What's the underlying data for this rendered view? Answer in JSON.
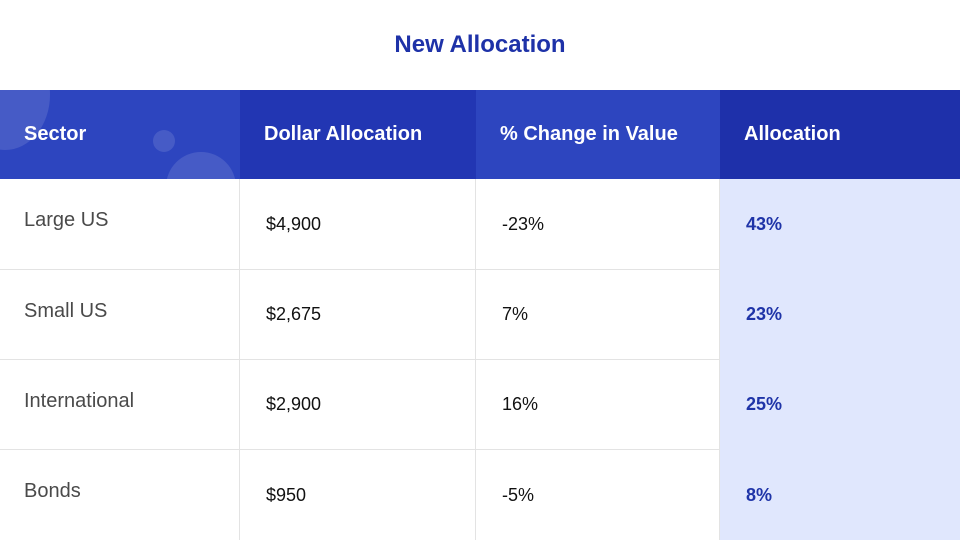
{
  "title": "New Allocation",
  "columns": [
    "Sector",
    "Dollar Allocation",
    "% Change in Value",
    "Allocation"
  ],
  "rows": [
    {
      "sector": "Large US",
      "dollar": "$4,900",
      "change": "-23%",
      "allocation": "43%"
    },
    {
      "sector": "Small US",
      "dollar": "$2,675",
      "change": "7%",
      "allocation": "23%"
    },
    {
      "sector": "International",
      "dollar": "$2,900",
      "change": "16%",
      "allocation": "25%"
    },
    {
      "sector": "Bonds",
      "dollar": "$950",
      "change": "-5%",
      "allocation": "8%"
    }
  ],
  "colors": {
    "accent": "#1e32a8",
    "header": "#2d45bf",
    "highlight_column": "#e0e7fd"
  }
}
